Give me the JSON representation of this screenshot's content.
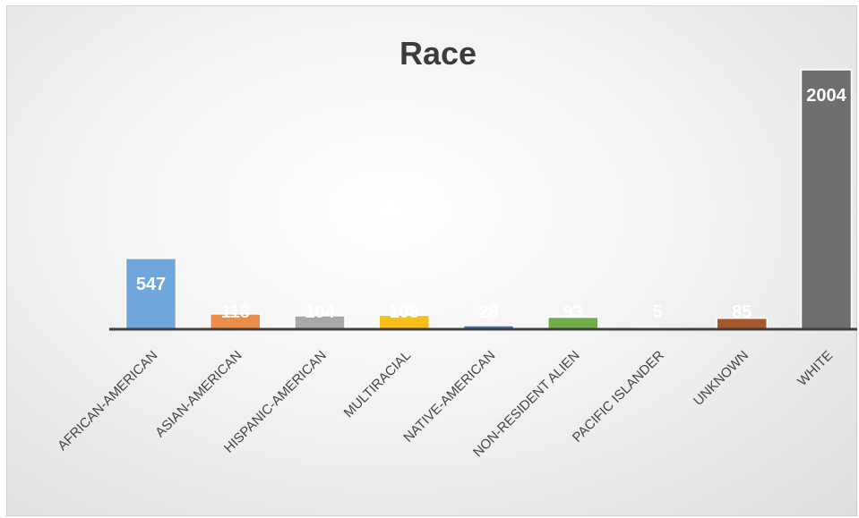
{
  "chart_data": {
    "type": "bar",
    "title": "Race",
    "xlabel": "",
    "ylabel": "",
    "ylim": [
      0,
      2100
    ],
    "grid": false,
    "legend": "none",
    "categories": [
      "AFRICAN-AMERICAN",
      "ASIAN-AMERICAN",
      "HISPANIC-AMERICAN",
      "MULTIRACIAL",
      "NATIVE-AMERICAN",
      "NON-RESIDENT ALIEN",
      "PACIFIC ISLANDER",
      "UNKNOWN",
      "WHITE"
    ],
    "values": [
      547,
      118,
      104,
      108,
      28,
      93,
      5,
      85,
      2004
    ],
    "colors": [
      "#6fa6dc",
      "#ed8c48",
      "#a8a8a8",
      "#f7bf18",
      "#4a73be",
      "#72ad4c",
      "#2d62ad",
      "#a8582a",
      "#6e6e6e"
    ],
    "axis_color": "#404040"
  }
}
